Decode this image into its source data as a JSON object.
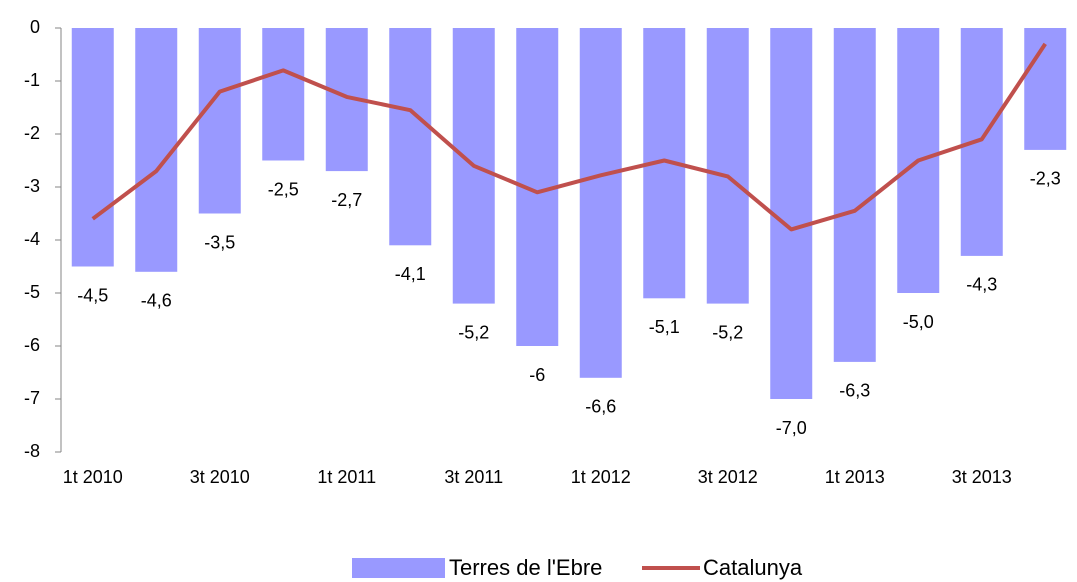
{
  "chart_data": {
    "type": "bar-line",
    "categories": [
      "1t 2010",
      null,
      "3t 2010",
      null,
      "1t 2011",
      null,
      "3t 2011",
      null,
      "1t 2012",
      null,
      "3t 2012",
      null,
      "1t 2013",
      null,
      "3t 2013",
      null
    ],
    "series": [
      {
        "name": "Terres de l'Ebre",
        "type": "bar",
        "color": "#9999ff",
        "values": [
          -4.5,
          -4.6,
          -3.5,
          -2.5,
          -2.7,
          -4.1,
          -5.2,
          -6,
          -6.6,
          -5.1,
          -5.2,
          -7.0,
          -6.3,
          -5.0,
          -4.3,
          -2.3
        ],
        "value_labels": [
          "-4,5",
          "-4,6",
          "-3,5",
          "-2,5",
          "-2,7",
          "-4,1",
          "-5,2",
          "-6",
          "-6,6",
          "-5,1",
          "-5,2",
          "-7,0",
          "-6,3",
          "-5,0",
          "-4,3",
          "-2,3"
        ]
      },
      {
        "name": "Catalunya",
        "type": "line",
        "color": "#c0504d",
        "values": [
          -3.6,
          -2.7,
          -1.2,
          -0.8,
          -1.3,
          -1.55,
          -2.6,
          -3.1,
          -2.78,
          -2.5,
          -2.8,
          -3.8,
          -3.45,
          -2.5,
          -2.1,
          -0.3
        ]
      }
    ],
    "ylim": [
      -8,
      0
    ],
    "yticks": [
      0,
      -1,
      -2,
      -3,
      -4,
      -5,
      -6,
      -7,
      -8
    ],
    "legend": "bottom"
  }
}
